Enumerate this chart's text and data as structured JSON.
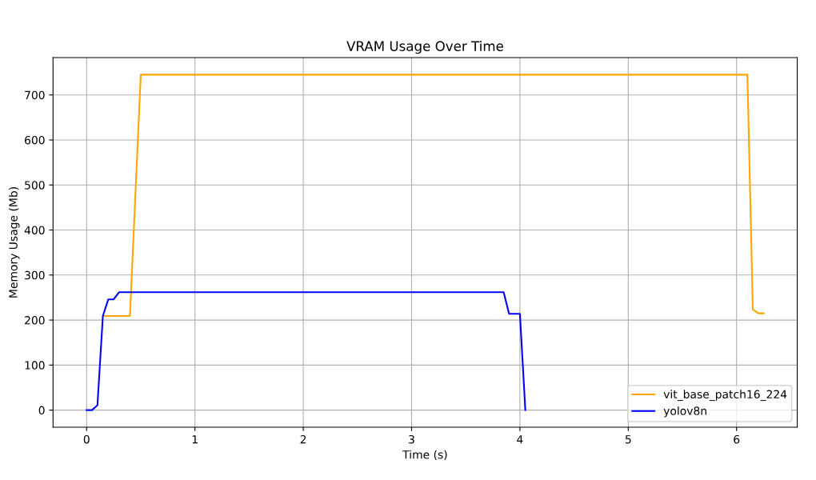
{
  "chart_data": {
    "type": "line",
    "title": "VRAM Usage Over Time",
    "xlabel": "Time (s)",
    "ylabel": "Memory Usage (Mb)",
    "series": [
      {
        "name": "vit_base_patch16_224",
        "color": "#ffa500",
        "x": [
          0.15,
          0.4,
          0.5,
          6.1,
          6.15,
          6.2,
          6.25
        ],
        "values": [
          209,
          209,
          745,
          745,
          224,
          215,
          215
        ]
      },
      {
        "name": "yolov8n",
        "color": "#0000ff",
        "x": [
          0,
          0.05,
          0.1,
          0.15,
          0.2,
          0.25,
          0.3,
          3.85,
          3.9,
          4.0,
          4.05
        ],
        "values": [
          0,
          0,
          11,
          209,
          246,
          246,
          262,
          262,
          214,
          214,
          0
        ]
      }
    ],
    "xlim": [
      -0.31,
      6.56
    ],
    "ylim": [
      -38,
      783
    ],
    "xticks": [
      0,
      1,
      2,
      3,
      4,
      5,
      6
    ],
    "yticks": [
      0,
      100,
      200,
      300,
      400,
      500,
      600,
      700
    ],
    "grid": true,
    "legend": "bottom right",
    "marker": "none",
    "line_style": "solid"
  }
}
